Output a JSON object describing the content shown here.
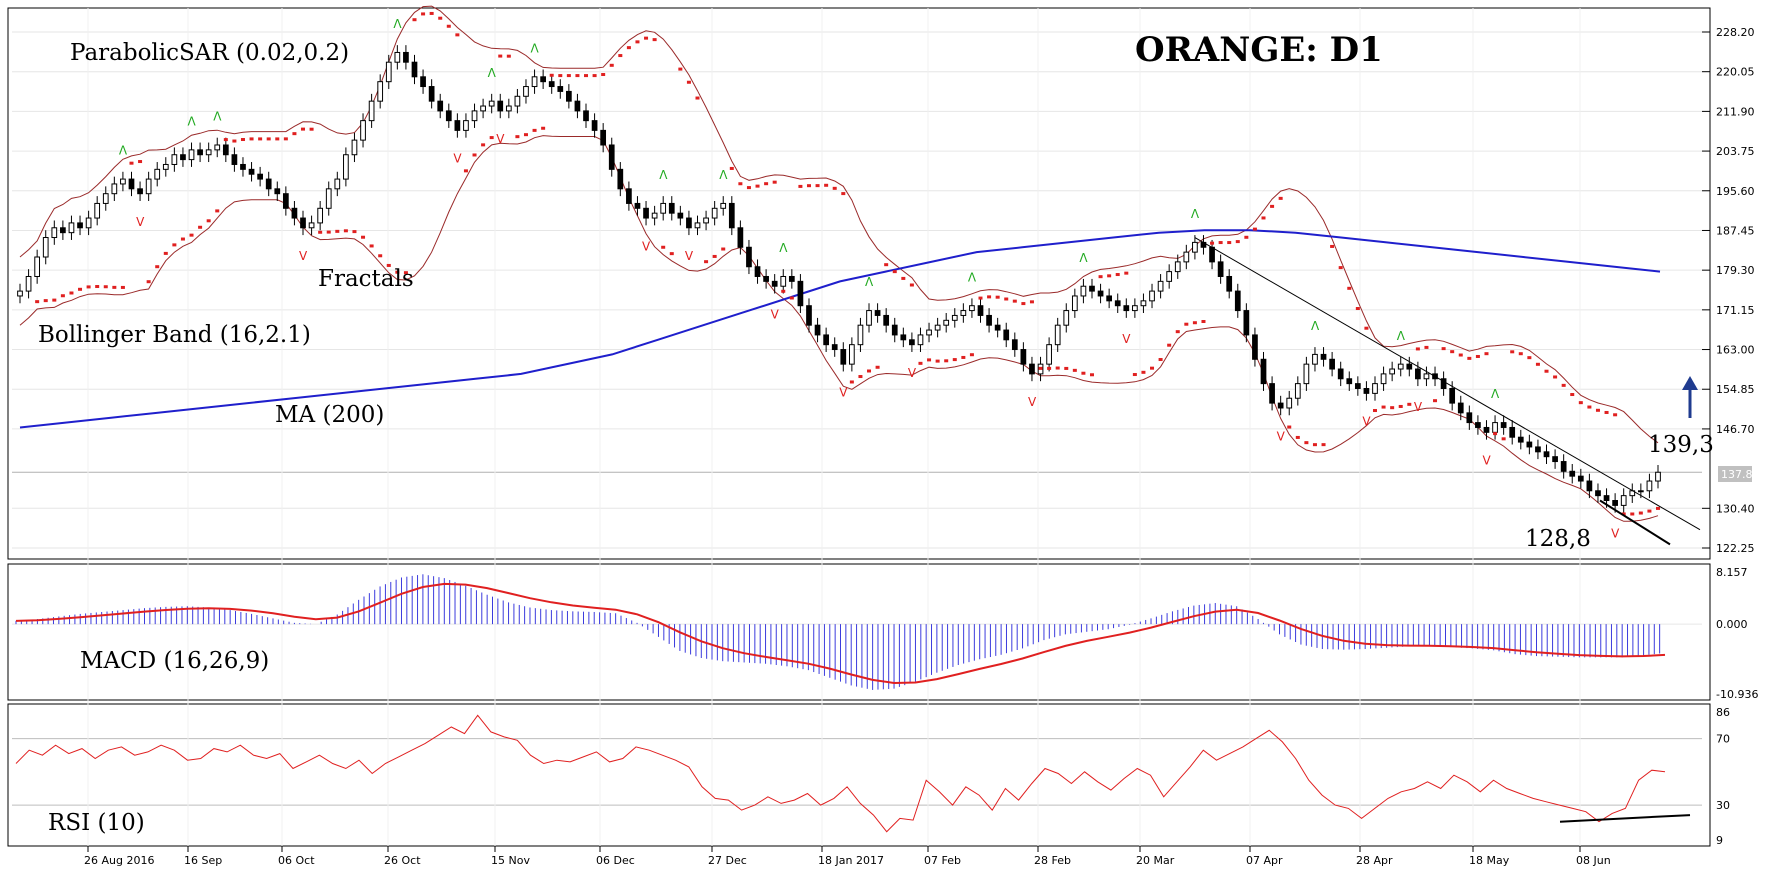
{
  "chart_data": {
    "type": "candlestick",
    "title": "ORANGE: D1",
    "indicators": {
      "parabolic_sar": "ParabolicSAR (0.02,0.2)",
      "fractals": "Fractals",
      "bollinger": "Bollinger Band (16,2.1)",
      "ma": "MA (200)",
      "macd": "MACD (16,26,9)",
      "rsi": "RSI (10)"
    },
    "annotations": {
      "high_level": "139,3",
      "low_level": "128,8"
    },
    "price_axis": {
      "ticks": [
        "228.20",
        "220.05",
        "211.90",
        "203.75",
        "195.60",
        "187.45",
        "179.30",
        "171.15",
        "163.00",
        "154.85",
        "146.70",
        "130.40",
        "122.25"
      ],
      "current_price": "137.81",
      "ylim": [
        122.25,
        228.2
      ]
    },
    "macd_axis": {
      "ticks": [
        "8.157",
        "0.000",
        "-10.936"
      ]
    },
    "rsi_axis": {
      "ticks": [
        "86",
        "70",
        "30",
        "9"
      ]
    },
    "x_axis": {
      "ticks": [
        "26 Aug 2016",
        "16 Sep",
        "06 Oct",
        "26 Oct",
        "15 Nov",
        "06 Dec",
        "27 Dec",
        "18 Jan 2017",
        "07 Feb",
        "28 Feb",
        "20 Mar",
        "07 Apr",
        "28 Apr",
        "18 May",
        "08 Jun"
      ]
    },
    "close_series": [
      175,
      178,
      182,
      186,
      188,
      187,
      189,
      188,
      190,
      193,
      195,
      197,
      198,
      196,
      195,
      198,
      200,
      201,
      203,
      202,
      204,
      203,
      204,
      205,
      203,
      201,
      200,
      199,
      198,
      196,
      195,
      192,
      190,
      188,
      189,
      192,
      196,
      198,
      203,
      206,
      210,
      214,
      218,
      222,
      224,
      222,
      219,
      217,
      214,
      212,
      210,
      208,
      210,
      212,
      213,
      214,
      212,
      213,
      215,
      217,
      219,
      218,
      217,
      216,
      214,
      212,
      210,
      208,
      205,
      200,
      196,
      193,
      192,
      190,
      191,
      193,
      191,
      190,
      188,
      189,
      190,
      192,
      193,
      188,
      184,
      180,
      178,
      177,
      176,
      178,
      177,
      172,
      168,
      166,
      164,
      163,
      160,
      164,
      168,
      171,
      170,
      168,
      166,
      165,
      164,
      166,
      167,
      168,
      169,
      170,
      171,
      172,
      170,
      168,
      167,
      165,
      163,
      160,
      158,
      160,
      164,
      168,
      171,
      174,
      176,
      175,
      174,
      173,
      172,
      171,
      172,
      173,
      175,
      177,
      179,
      181,
      183,
      185,
      184,
      181,
      178,
      175,
      171,
      166,
      161,
      156,
      152,
      151,
      153,
      156,
      160,
      162,
      161,
      159,
      157,
      156,
      155,
      154,
      156,
      158,
      159,
      160,
      159,
      157,
      158,
      157,
      155,
      152,
      150,
      148,
      147,
      146,
      148,
      147,
      145,
      144,
      143,
      142,
      141,
      140,
      138,
      137,
      136,
      134,
      133,
      132,
      131,
      133,
      134,
      134,
      136,
      137.8
    ],
    "ma200_series": [
      147,
      148,
      149,
      150,
      151,
      152,
      153,
      154,
      155,
      156,
      157,
      158,
      160,
      162,
      165,
      168,
      171,
      174,
      177,
      179,
      181,
      183,
      184,
      185,
      186,
      187,
      187.5,
      187.5,
      187,
      186,
      185,
      184,
      183,
      182,
      181,
      180,
      179
    ],
    "macd_series": [
      0.5,
      0.8,
      1.2,
      1.6,
      1.9,
      2.2,
      2.5,
      2.7,
      2.8,
      2.6,
      2.2,
      1.6,
      0.9,
      0.2,
      0.0,
      1.5,
      3.8,
      5.9,
      7.3,
      7.8,
      7.2,
      6.0,
      4.6,
      3.4,
      2.6,
      2.2,
      2.0,
      1.9,
      1.7,
      0.2,
      -2.0,
      -4.2,
      -5.3,
      -5.8,
      -6.0,
      -6.2,
      -6.6,
      -7.2,
      -8.4,
      -9.6,
      -10.3,
      -10.1,
      -9.0,
      -7.6,
      -6.4,
      -5.5,
      -4.8,
      -3.8,
      -2.5,
      -1.6,
      -1.2,
      -0.8,
      -0.1,
      0.9,
      2.0,
      2.9,
      3.3,
      2.8,
      0.8,
      -1.6,
      -3.2,
      -3.9,
      -4.0,
      -3.9,
      -3.7,
      -3.5,
      -3.4,
      -3.6,
      -3.8,
      -4.1,
      -4.7,
      -5.0,
      -5.1,
      -5.2,
      -5.2,
      -5.2,
      -4.9,
      -4.5
    ],
    "rsi_series": [
      55,
      63,
      60,
      66,
      61,
      64,
      58,
      63,
      65,
      60,
      62,
      66,
      63,
      57,
      58,
      64,
      62,
      66,
      60,
      58,
      61,
      52,
      56,
      60,
      55,
      52,
      57,
      49,
      55,
      59,
      63,
      67,
      72,
      77,
      73,
      84,
      74,
      71,
      69,
      60,
      55,
      57,
      56,
      59,
      62,
      56,
      58,
      65,
      63,
      60,
      57,
      53,
      41,
      34,
      33,
      27,
      30,
      35,
      31,
      33,
      37,
      30,
      34,
      41,
      31,
      24,
      14,
      22,
      21,
      45,
      38,
      30,
      41,
      36,
      27,
      40,
      33,
      43,
      52,
      49,
      43,
      50,
      44,
      39,
      46,
      52,
      48,
      35,
      44,
      53,
      63,
      57,
      61,
      65,
      70,
      75,
      68,
      58,
      45,
      36,
      30,
      28,
      22,
      28,
      34,
      38,
      40,
      44,
      40,
      48,
      44,
      38,
      45,
      40,
      37,
      34,
      32,
      30,
      28,
      26,
      20,
      25,
      28,
      45,
      51,
      50
    ]
  }
}
